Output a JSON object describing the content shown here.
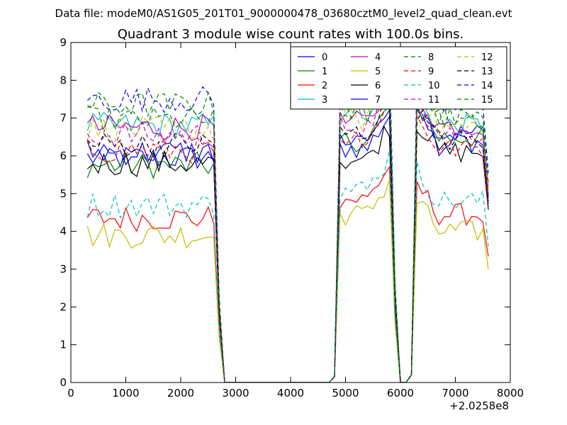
{
  "header": {
    "data_file": "Data file: modeM0/AS1G05_201T01_9000000478_03680cztM0_level2_quad_clean.evt"
  },
  "chart_data": {
    "type": "line",
    "title": "Quadrant 3 module wise count rates with 100.0s bins.",
    "xlabel": "",
    "ylabel": "",
    "x_offset_label": "+2.0258e8",
    "xlim": [
      0,
      8000
    ],
    "ylim": [
      0,
      9
    ],
    "x_ticks": [
      "0",
      "1000",
      "2000",
      "3000",
      "4000",
      "5000",
      "6000",
      "7000",
      "8000"
    ],
    "y_ticks": [
      "0",
      "1",
      "2",
      "3",
      "4",
      "5",
      "6",
      "7",
      "8",
      "9"
    ],
    "legend_position": "top-right",
    "legend_columns": 4,
    "x": [
      300,
      400,
      500,
      600,
      700,
      800,
      900,
      1000,
      1100,
      1200,
      1300,
      1400,
      1500,
      1600,
      1700,
      1800,
      1900,
      2000,
      2100,
      2200,
      2300,
      2400,
      2500,
      2600,
      2700,
      2800,
      2900,
      3000,
      3100,
      3200,
      3300,
      3400,
      3500,
      3600,
      3700,
      3800,
      3900,
      4000,
      4100,
      4200,
      4300,
      4400,
      4500,
      4600,
      4700,
      4800,
      4900,
      5000,
      5100,
      5200,
      5300,
      5400,
      5500,
      5600,
      5700,
      5800,
      5900,
      6000,
      6100,
      6200,
      6300,
      6400,
      6500,
      6600,
      6700,
      6800,
      6900,
      7000,
      7100,
      7200,
      7300,
      7400,
      7500,
      7600
    ],
    "series": [
      {
        "name": "0",
        "color": "#0000ff",
        "dash": "solid",
        "active1": 5.95,
        "active2": 6.2,
        "active3": 6.6
      },
      {
        "name": "1",
        "color": "#008000",
        "dash": "solid",
        "active1": 5.75,
        "active2": 6.4,
        "active3": 6.5
      },
      {
        "name": "2",
        "color": "#ff0000",
        "dash": "solid",
        "active1": 4.35,
        "active2": 4.85,
        "active3": 4.45
      },
      {
        "name": "3",
        "color": "#00bfbf",
        "dash": "solid",
        "active1": 6.8,
        "active2": 7.2,
        "active3": 6.8
      },
      {
        "name": "4",
        "color": "#bf00bf",
        "dash": "solid",
        "active1": 6.75,
        "active2": 6.9,
        "active3": 6.8
      },
      {
        "name": "5",
        "color": "#bfbf00",
        "dash": "solid",
        "active1": 3.9,
        "active2": 4.45,
        "active3": 4.0
      },
      {
        "name": "6",
        "color": "#000000",
        "dash": "solid",
        "active1": 5.8,
        "active2": 5.9,
        "active3": 6.1
      },
      {
        "name": "7",
        "color": "#0000ff",
        "dash": "solid",
        "active1": 6.1,
        "active2": 6.45,
        "active3": 6.3
      },
      {
        "name": "8",
        "color": "#008000",
        "dash": "dash",
        "active1": 6.95,
        "active2": 7.15,
        "active3": 7.0
      },
      {
        "name": "9",
        "color": "#ff0000",
        "dash": "dash",
        "active1": 6.15,
        "active2": 6.5,
        "active3": 6.2
      },
      {
        "name": "10",
        "color": "#00bfbf",
        "dash": "dash",
        "active1": 4.7,
        "active2": 5.1,
        "active3": 4.8
      },
      {
        "name": "11",
        "color": "#bf00bf",
        "dash": "dash",
        "active1": 6.55,
        "active2": 6.8,
        "active3": 6.6
      },
      {
        "name": "12",
        "color": "#bfbf00",
        "dash": "dash",
        "active1": 6.7,
        "active2": 6.95,
        "active3": 6.75
      },
      {
        "name": "13",
        "color": "#000000",
        "dash": "dash",
        "active1": 6.3,
        "active2": 6.6,
        "active3": 6.4
      },
      {
        "name": "14",
        "color": "#0000ff",
        "dash": "dash",
        "active1": 7.5,
        "active2": 7.6,
        "active3": 7.4
      },
      {
        "name": "15",
        "color": "#008000",
        "dash": "dash",
        "active1": 7.35,
        "active2": 7.3,
        "active3": 7.0
      }
    ]
  }
}
